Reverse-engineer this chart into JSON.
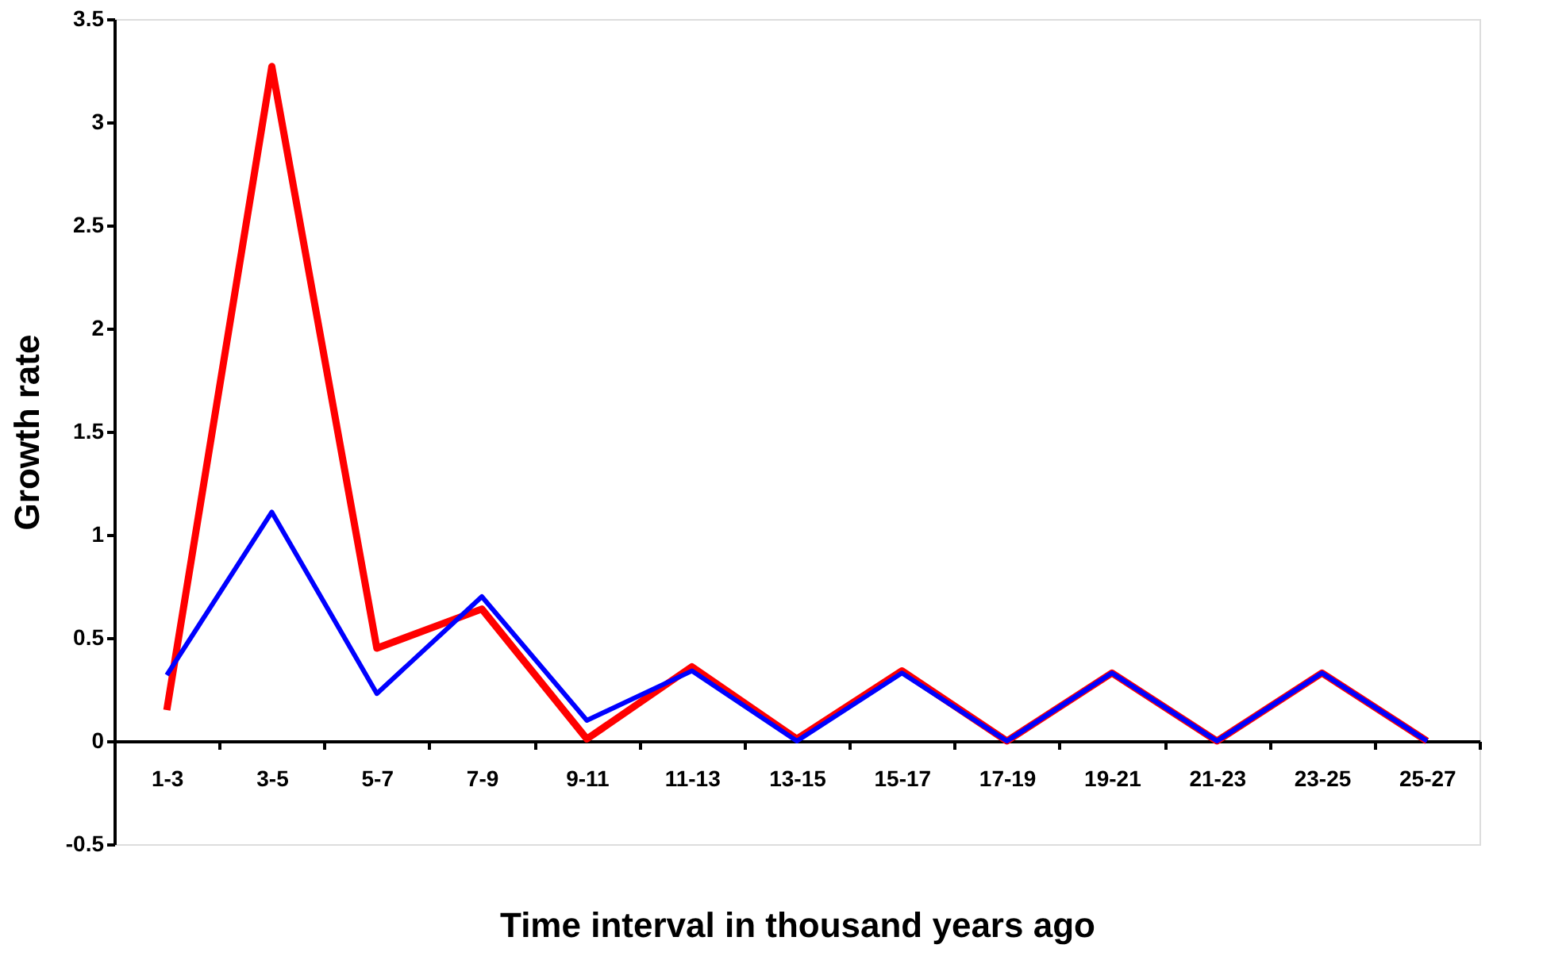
{
  "chart_data": {
    "type": "line",
    "xlabel": "Time interval in thousand years ago",
    "ylabel": "Growth rate",
    "categories": [
      "1-3",
      "3-5",
      "5-7",
      "7-9",
      "9-11",
      "11-13",
      "13-15",
      "15-17",
      "17-19",
      "19-21",
      "21-23",
      "23-25",
      "25-27"
    ],
    "series": [
      {
        "color": "#ff0000",
        "values": [
          0.15,
          3.27,
          0.45,
          0.64,
          0.01,
          0.36,
          0.01,
          0.34,
          0,
          0.33,
          0,
          0.33,
          0
        ]
      },
      {
        "color": "#0000ff",
        "values": [
          0.32,
          1.11,
          0.23,
          0.7,
          0.1,
          0.34,
          0,
          0.33,
          0,
          0.33,
          0,
          0.33,
          0
        ]
      }
    ],
    "ylim": [
      -0.5,
      3.5
    ],
    "yticks": [
      -0.5,
      0,
      0.5,
      1,
      1.5,
      2,
      2.5,
      3,
      3.5
    ],
    "grid": false,
    "marker": "none",
    "line_style": "solid"
  }
}
